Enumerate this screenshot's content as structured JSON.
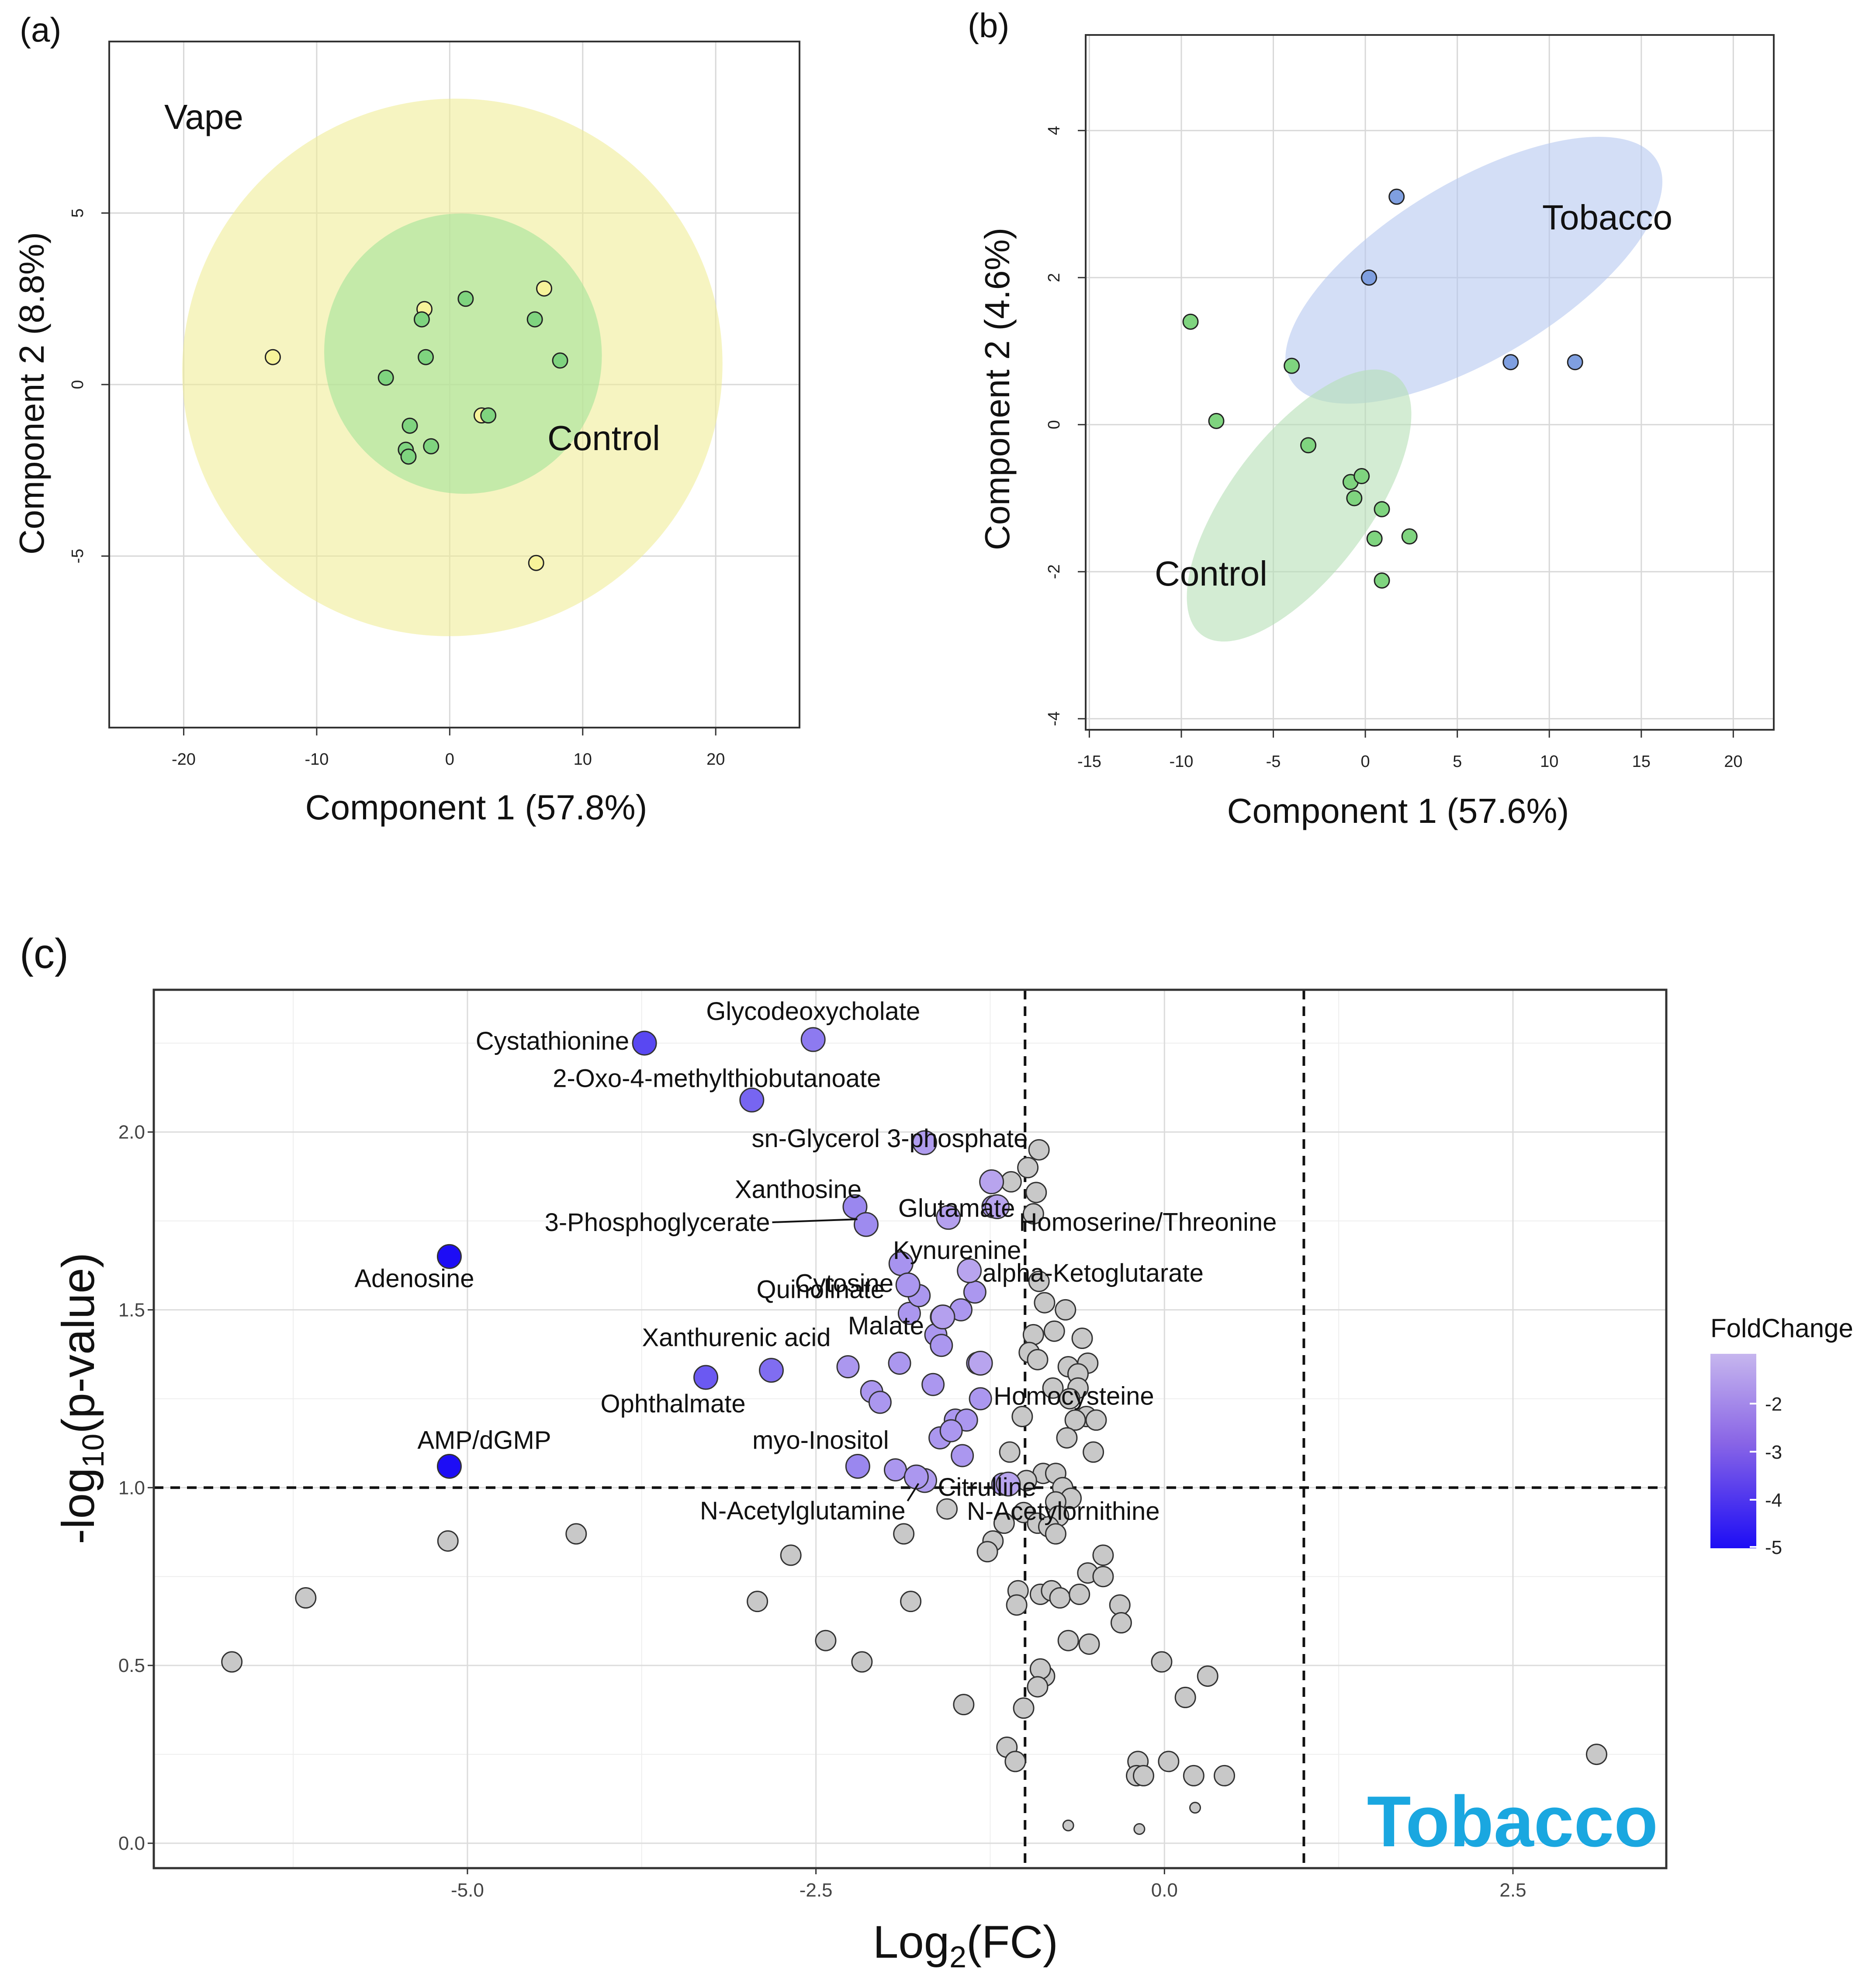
{
  "chart_data": [
    {
      "panel": "(a)",
      "type": "scatter",
      "xlabel": "Component 1 (57.8%)",
      "ylabel": "Component 2 (8.8%)",
      "xlim": [
        -25.6,
        26.3
      ],
      "ylim": [
        -10.0,
        10.0
      ],
      "xticks": [
        -20,
        -10,
        0,
        10,
        20
      ],
      "yticks": [
        -5,
        0,
        5
      ],
      "grid": true,
      "groups": [
        {
          "name": "Vape",
          "color": "#f0ec98",
          "ellipse": {
            "cx": 0.2,
            "cy": 0.5,
            "rx": 20.4,
            "ry": 7.8
          }
        },
        {
          "name": "Control",
          "color": "#a3e39a",
          "ellipse": {
            "cx": 1.0,
            "cy": 0.9,
            "rx": 10.4,
            "ry": 4.1
          }
        }
      ],
      "series": [
        {
          "name": "Vape",
          "color": "#f7f39a",
          "points": [
            [
              -13.3,
              0.8
            ],
            [
              -1.9,
              2.2
            ],
            [
              2.4,
              -0.9
            ],
            [
              7.1,
              2.8
            ],
            [
              6.5,
              -5.2
            ]
          ]
        },
        {
          "name": "Control",
          "color": "#7fd47f",
          "points": [
            [
              -4.8,
              0.2
            ],
            [
              -2.1,
              1.9
            ],
            [
              -1.8,
              0.8
            ],
            [
              1.2,
              2.5
            ],
            [
              6.4,
              1.9
            ],
            [
              8.3,
              0.7
            ],
            [
              -3.0,
              -1.2
            ],
            [
              -3.3,
              -1.9
            ],
            [
              -3.1,
              -2.1
            ],
            [
              -1.4,
              -1.8
            ],
            [
              2.9,
              -0.9
            ]
          ]
        }
      ],
      "annotations": [
        "Vape",
        "Control"
      ]
    },
    {
      "panel": "(b)",
      "type": "scatter",
      "xlabel": "Component 1 (57.6%)",
      "ylabel": "Component 2 (4.6%)",
      "xlim": [
        -15.2,
        22.2
      ],
      "ylim": [
        -4.15,
        5.3
      ],
      "xticks": [
        -15,
        -10,
        -5,
        0,
        5,
        10,
        15,
        20
      ],
      "yticks": [
        -4,
        -2,
        0,
        2,
        4
      ],
      "grid": true,
      "groups": [
        {
          "name": "Tobacco",
          "color": "#b6c8f0",
          "ellipse": {
            "cx": 5.9,
            "cy": 2.1,
            "rx": 11.6,
            "ry": 1.2
          }
        },
        {
          "name": "Control",
          "color": "#b5e0b5",
          "ellipse": {
            "cx": -3.6,
            "cy": -1.1,
            "rx": 8.8,
            "ry": 0.95
          }
        }
      ],
      "series": [
        {
          "name": "Tobacco",
          "color": "#7f9fe0",
          "points": [
            [
              1.7,
              3.1
            ],
            [
              0.2,
              2.0
            ],
            [
              7.9,
              0.85
            ],
            [
              11.4,
              0.85
            ]
          ]
        },
        {
          "name": "Control",
          "color": "#7fd47f",
          "points": [
            [
              -9.5,
              1.4
            ],
            [
              -8.1,
              0.05
            ],
            [
              -4.0,
              0.8
            ],
            [
              -3.1,
              -0.28
            ],
            [
              -0.8,
              -0.78
            ],
            [
              -0.2,
              -0.7
            ],
            [
              -0.6,
              -1.0
            ],
            [
              0.9,
              -1.15
            ],
            [
              0.5,
              -1.55
            ],
            [
              2.4,
              -1.52
            ],
            [
              0.9,
              -2.12
            ]
          ]
        }
      ],
      "annotations": [
        "Tobacco",
        "Control"
      ]
    },
    {
      "panel": "(c)",
      "type": "scatter",
      "title_badge": "Tobacco",
      "xlabel": "Log2(FC)",
      "ylabel": "-log10(p-value)",
      "xlim": [
        -7.25,
        3.6
      ],
      "ylim": [
        -0.07,
        2.4
      ],
      "xticks": [
        -5.0,
        -2.5,
        0.0,
        2.5
      ],
      "xtick_labels": [
        "-5.0",
        "-2.5",
        "0.0",
        "2.5"
      ],
      "yticks": [
        0.0,
        0.5,
        1.0,
        1.5,
        2.0
      ],
      "ytick_labels": [
        "0.0",
        "0.5",
        "1.0",
        "1.5",
        "2.0"
      ],
      "grid": true,
      "thresholds": {
        "x": [
          -1.0,
          1.0
        ],
        "y": 1.0
      },
      "legend": {
        "title": "FoldChange",
        "position": "right",
        "ticks": [
          "-2",
          "-3",
          "-4",
          "-5"
        ],
        "colors": [
          "#c7b6ee",
          "#5b2fe8"
        ]
      },
      "significant": [
        {
          "label": "Glycodeoxycholate",
          "x": -2.52,
          "y": 2.26,
          "fc": -2.5
        },
        {
          "label": "Cystathionine",
          "x": -3.73,
          "y": 2.25,
          "fc": -3.7
        },
        {
          "label": "2-Oxo-4-methylthiobutanoate",
          "x": -2.96,
          "y": 2.09,
          "fc": -3.0
        },
        {
          "label": "sn-Glycerol 3-phosphate",
          "x": -1.72,
          "y": 1.97,
          "fc": -1.7
        },
        {
          "label": "Glutamate",
          "x": -1.24,
          "y": 1.86,
          "fc": -1.2
        },
        {
          "label": "Homoserine/Threonine",
          "x": -1.2,
          "y": 1.79,
          "fc": -1.2
        },
        {
          "label": "Xanthosine",
          "x": -2.22,
          "y": 1.79,
          "fc": -2.2
        },
        {
          "label": "3-Phosphoglycerate",
          "x": -2.14,
          "y": 1.74,
          "fc": -2.1
        },
        {
          "label": "Kynurenine",
          "x": -1.55,
          "y": 1.76,
          "fc": -1.6
        },
        {
          "label": "Cytosine",
          "x": -1.89,
          "y": 1.63,
          "fc": -1.9
        },
        {
          "label": "alpha-Ketoglutarate",
          "x": -1.4,
          "y": 1.61,
          "fc": -1.4
        },
        {
          "label": "Quinolinate",
          "x": -1.84,
          "y": 1.57,
          "fc": -1.8
        },
        {
          "label": "Adenosine",
          "x": -5.13,
          "y": 1.65,
          "fc": -5.1
        },
        {
          "label": "Malate",
          "x": -1.59,
          "y": 1.48,
          "fc": -1.6
        },
        {
          "label": "Xanthurenic acid",
          "x": -2.82,
          "y": 1.33,
          "fc": -2.8
        },
        {
          "label": "Ophthalmate",
          "x": -3.29,
          "y": 1.31,
          "fc": -3.3
        },
        {
          "label": "Homocysteine",
          "x": -1.32,
          "y": 1.35,
          "fc": -1.3
        },
        {
          "label": "myo-Inositol",
          "x": -2.2,
          "y": 1.06,
          "fc": -2.2
        },
        {
          "label": "Citrulline",
          "x": -1.72,
          "y": 1.02,
          "fc": -1.7
        },
        {
          "label": "N-Acetylglutamine",
          "x": -1.78,
          "y": 1.03,
          "fc": -1.8
        },
        {
          "label": "N-Acetylornithine",
          "x": -1.12,
          "y": 1.01,
          "fc": -1.1
        },
        {
          "label": "AMP/dGMP",
          "x": -5.13,
          "y": 1.06,
          "fc": -5.1
        }
      ],
      "purple_unlabeled": [
        [
          -1.64,
          1.43
        ],
        [
          -1.83,
          1.49
        ],
        [
          -1.76,
          1.54
        ],
        [
          -1.6,
          1.48
        ],
        [
          -1.46,
          1.5
        ],
        [
          -1.36,
          1.55
        ],
        [
          -1.23,
          1.79
        ],
        [
          -2.27,
          1.34
        ],
        [
          -1.9,
          1.35
        ],
        [
          -1.66,
          1.29
        ],
        [
          -2.1,
          1.27
        ],
        [
          -2.04,
          1.24
        ],
        [
          -1.5,
          1.19
        ],
        [
          -1.42,
          1.19
        ],
        [
          -1.61,
          1.14
        ],
        [
          -1.53,
          1.16
        ],
        [
          -1.45,
          1.09
        ],
        [
          -1.93,
          1.05
        ],
        [
          -1.34,
          1.35
        ],
        [
          -1.32,
          1.25
        ],
        [
          -1.16,
          1.01
        ],
        [
          -1.6,
          1.4
        ]
      ],
      "grey_points": [
        [
          -0.9,
          1.95
        ],
        [
          -1.1,
          1.86
        ],
        [
          -0.98,
          1.9
        ],
        [
          -0.92,
          1.83
        ],
        [
          -0.94,
          1.77
        ],
        [
          -0.9,
          1.58
        ],
        [
          -0.86,
          1.52
        ],
        [
          -0.71,
          1.5
        ],
        [
          -0.59,
          1.42
        ],
        [
          -0.79,
          1.44
        ],
        [
          -0.94,
          1.43
        ],
        [
          -0.97,
          1.38
        ],
        [
          -0.91,
          1.36
        ],
        [
          -0.69,
          1.34
        ],
        [
          -0.55,
          1.35
        ],
        [
          -0.62,
          1.32
        ],
        [
          -0.8,
          1.28
        ],
        [
          -0.62,
          1.28
        ],
        [
          -0.68,
          1.25
        ],
        [
          -0.56,
          1.2
        ],
        [
          -0.49,
          1.19
        ],
        [
          -0.64,
          1.19
        ],
        [
          -0.7,
          1.14
        ],
        [
          -0.51,
          1.1
        ],
        [
          -1.02,
          1.2
        ],
        [
          -1.11,
          1.1
        ],
        [
          -0.87,
          1.04
        ],
        [
          -0.78,
          1.04
        ],
        [
          -0.99,
          1.02
        ],
        [
          -0.73,
          1.0
        ],
        [
          -0.67,
          0.97
        ],
        [
          -0.78,
          0.96
        ],
        [
          -1.01,
          0.93
        ],
        [
          -0.91,
          0.9
        ],
        [
          -0.76,
          0.92
        ],
        [
          -0.83,
          0.89
        ],
        [
          -0.78,
          0.87
        ],
        [
          -1.15,
          0.9
        ],
        [
          -1.23,
          0.85
        ],
        [
          -1.27,
          0.82
        ],
        [
          -1.56,
          0.94
        ],
        [
          -1.87,
          0.87
        ],
        [
          -1.05,
          0.71
        ],
        [
          -1.06,
          0.67
        ],
        [
          -0.89,
          0.7
        ],
        [
          -0.81,
          0.71
        ],
        [
          -0.75,
          0.69
        ],
        [
          -0.61,
          0.7
        ],
        [
          -0.55,
          0.76
        ],
        [
          -0.44,
          0.81
        ],
        [
          -0.44,
          0.75
        ],
        [
          -0.32,
          0.67
        ],
        [
          -0.31,
          0.62
        ],
        [
          -0.69,
          0.57
        ],
        [
          -0.54,
          0.56
        ],
        [
          -0.86,
          0.47
        ],
        [
          -0.89,
          0.49
        ],
        [
          -0.91,
          0.44
        ],
        [
          -1.01,
          0.38
        ],
        [
          -1.44,
          0.39
        ],
        [
          -0.02,
          0.51
        ],
        [
          0.15,
          0.41
        ],
        [
          0.31,
          0.47
        ],
        [
          -2.68,
          0.81
        ],
        [
          -2.92,
          0.68
        ],
        [
          -2.43,
          0.57
        ],
        [
          -2.17,
          0.51
        ],
        [
          -1.82,
          0.68
        ],
        [
          -4.22,
          0.87
        ],
        [
          -5.14,
          0.85
        ],
        [
          -6.16,
          0.69
        ],
        [
          -6.69,
          0.51
        ],
        [
          -1.13,
          0.27
        ],
        [
          -1.07,
          0.23
        ],
        [
          -0.19,
          0.23
        ],
        [
          0.03,
          0.23
        ],
        [
          -0.2,
          0.19
        ],
        [
          -0.15,
          0.19
        ],
        [
          0.21,
          0.19
        ],
        [
          0.43,
          0.19
        ],
        [
          0.22,
          0.1
        ],
        [
          -0.69,
          0.05
        ],
        [
          -0.18,
          0.04
        ],
        [
          3.1,
          0.25
        ]
      ]
    }
  ],
  "labels": {
    "panel_a": "(a)",
    "panel_b": "(b)",
    "panel_c": "(c)",
    "a_vape": "Vape",
    "a_control": "Control",
    "b_tobacco": "Tobacco",
    "b_control": "Control",
    "c_badge": "Tobacco",
    "c_xlabel_main": "Log",
    "c_xlabel_sub": "2",
    "c_xlabel_tail": "(FC)",
    "c_ylabel_main": "-log",
    "c_ylabel_sub": "10",
    "c_ylabel_tail": "(p-value)",
    "legend_title": "FoldChange"
  }
}
